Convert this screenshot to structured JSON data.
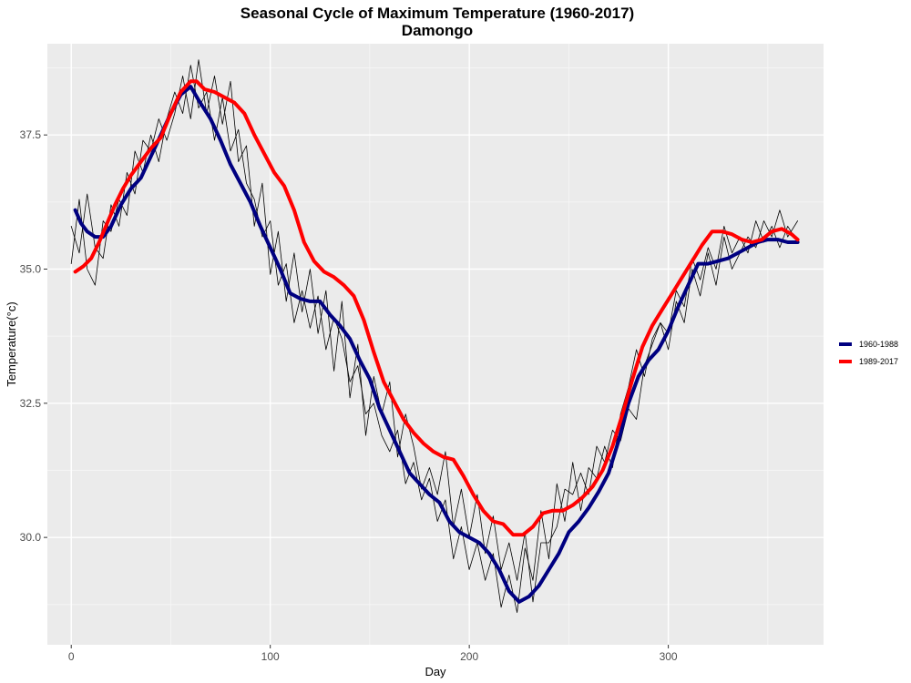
{
  "chart_data": {
    "type": "line",
    "title": "Seasonal Cycle of Maximum Temperature (1960-2017)",
    "subtitle": "Damongo",
    "xlabel": "Day",
    "ylabel": "Temperature(°c)",
    "xlim": [
      -12,
      378
    ],
    "ylim": [
      28.0,
      39.2
    ],
    "x_ticks": [
      0,
      100,
      200,
      300
    ],
    "x_tick_labels": [
      "0",
      "100",
      "200",
      "300"
    ],
    "y_ticks": [
      30.0,
      32.5,
      35.0,
      37.5
    ],
    "y_tick_labels": [
      "30.0",
      "32.5",
      "35.0",
      "37.5"
    ],
    "grid": true,
    "legend_position": "right",
    "series": [
      {
        "name": "1960-1988",
        "color": "#000080",
        "smoothed": true,
        "x": [
          2,
          5,
          8,
          12,
          16,
          20,
          25,
          30,
          35,
          40,
          45,
          50,
          55,
          60,
          64,
          70,
          75,
          80,
          85,
          90,
          95,
          100,
          105,
          110,
          115,
          120,
          125,
          130,
          135,
          140,
          145,
          150,
          155,
          160,
          165,
          170,
          175,
          180,
          185,
          190,
          195,
          200,
          205,
          210,
          215,
          220,
          225,
          230,
          235,
          240,
          245,
          250,
          255,
          260,
          265,
          270,
          275,
          280,
          285,
          290,
          295,
          300,
          305,
          310,
          315,
          320,
          325,
          330,
          335,
          340,
          345,
          350,
          355,
          360,
          365
        ],
        "y": [
          36.1,
          35.85,
          35.7,
          35.6,
          35.6,
          35.8,
          36.2,
          36.5,
          36.7,
          37.1,
          37.5,
          37.9,
          38.25,
          38.4,
          38.15,
          37.8,
          37.4,
          36.95,
          36.6,
          36.25,
          35.8,
          35.4,
          35.0,
          34.55,
          34.45,
          34.4,
          34.4,
          34.15,
          33.95,
          33.7,
          33.3,
          32.95,
          32.4,
          32.0,
          31.6,
          31.2,
          31.0,
          30.8,
          30.65,
          30.3,
          30.1,
          30.0,
          29.9,
          29.7,
          29.4,
          29.0,
          28.8,
          28.9,
          29.1,
          29.4,
          29.7,
          30.1,
          30.3,
          30.55,
          30.85,
          31.2,
          31.8,
          32.5,
          33.0,
          33.3,
          33.5,
          33.85,
          34.3,
          34.7,
          35.1,
          35.1,
          35.15,
          35.2,
          35.3,
          35.4,
          35.5,
          35.55,
          35.55,
          35.5,
          35.5
        ]
      },
      {
        "name": "1989-2017",
        "color": "#ff0000",
        "smoothed": true,
        "x": [
          2,
          6,
          10,
          14,
          18,
          22,
          26,
          30,
          35,
          40,
          45,
          50,
          55,
          60,
          63,
          67,
          72,
          77,
          82,
          87,
          92,
          97,
          102,
          107,
          112,
          117,
          122,
          127,
          132,
          137,
          142,
          147,
          152,
          157,
          162,
          167,
          172,
          177,
          182,
          187,
          192,
          197,
          202,
          207,
          212,
          217,
          222,
          227,
          232,
          237,
          242,
          247,
          252,
          257,
          262,
          267,
          272,
          277,
          282,
          287,
          292,
          297,
          302,
          307,
          312,
          317,
          322,
          327,
          332,
          337,
          342,
          347,
          352,
          357,
          362,
          365
        ],
        "y": [
          34.95,
          35.05,
          35.2,
          35.5,
          35.85,
          36.2,
          36.5,
          36.75,
          37.0,
          37.25,
          37.45,
          37.9,
          38.3,
          38.5,
          38.5,
          38.35,
          38.3,
          38.2,
          38.1,
          37.9,
          37.5,
          37.15,
          36.8,
          36.55,
          36.1,
          35.5,
          35.15,
          34.95,
          34.85,
          34.7,
          34.5,
          34.05,
          33.45,
          32.9,
          32.55,
          32.2,
          31.95,
          31.75,
          31.6,
          31.5,
          31.45,
          31.15,
          30.8,
          30.5,
          30.3,
          30.25,
          30.05,
          30.05,
          30.2,
          30.45,
          30.5,
          30.5,
          30.6,
          30.75,
          30.95,
          31.25,
          31.7,
          32.3,
          32.95,
          33.55,
          33.95,
          34.25,
          34.55,
          34.85,
          35.15,
          35.45,
          35.7,
          35.7,
          35.65,
          35.55,
          35.5,
          35.55,
          35.7,
          35.75,
          35.65,
          35.55
        ]
      },
      {
        "name": "",
        "color": "#000000",
        "smoothed": false,
        "x": [
          0,
          4,
          8,
          12,
          16,
          20,
          24,
          28,
          32,
          36,
          40,
          44,
          48,
          52,
          56,
          60,
          64,
          68,
          72,
          76,
          80,
          84,
          88,
          92,
          96,
          100,
          104,
          108,
          112,
          116,
          120,
          124,
          128,
          132,
          136,
          140,
          144,
          148,
          152,
          156,
          160,
          164,
          168,
          172,
          176,
          180,
          184,
          188,
          192,
          196,
          200,
          204,
          208,
          212,
          216,
          220,
          224,
          228,
          232,
          236,
          240,
          244,
          248,
          252,
          256,
          260,
          264,
          268,
          272,
          276,
          280,
          284,
          288,
          292,
          296,
          300,
          304,
          308,
          312,
          316,
          320,
          324,
          328,
          332,
          336,
          340,
          344,
          348,
          352,
          356,
          360,
          365
        ],
        "y": [
          35.1,
          36.3,
          35.0,
          34.7,
          35.9,
          35.7,
          36.3,
          36.0,
          37.2,
          36.8,
          37.5,
          37.0,
          37.8,
          38.3,
          37.9,
          38.8,
          38.0,
          38.3,
          37.4,
          38.2,
          37.2,
          37.6,
          36.6,
          36.3,
          35.6,
          35.9,
          34.7,
          35.1,
          34.0,
          34.6,
          33.9,
          34.5,
          33.5,
          34.1,
          33.7,
          32.9,
          33.2,
          32.3,
          32.5,
          31.9,
          31.6,
          32.0,
          31.0,
          31.4,
          30.7,
          31.1,
          30.3,
          30.7,
          29.6,
          30.2,
          29.4,
          29.9,
          29.2,
          29.7,
          28.7,
          29.3,
          28.6,
          29.8,
          29.2,
          30.5,
          29.6,
          31.0,
          30.3,
          31.4,
          30.5,
          31.3,
          31.1,
          31.7,
          31.3,
          32.3,
          32.8,
          33.5,
          33.0,
          33.7,
          34.0,
          33.8,
          34.6,
          34.3,
          35.2,
          34.8,
          35.4,
          35.0,
          35.8,
          35.3,
          35.6,
          35.3,
          35.9,
          35.5,
          35.8,
          35.4,
          35.8,
          35.5
        ]
      },
      {
        "name": "",
        "color": "#000000",
        "smoothed": false,
        "x": [
          0,
          4,
          8,
          12,
          16,
          20,
          24,
          28,
          32,
          36,
          40,
          44,
          48,
          52,
          56,
          60,
          64,
          68,
          72,
          76,
          80,
          84,
          88,
          92,
          96,
          100,
          104,
          108,
          112,
          116,
          120,
          124,
          128,
          132,
          136,
          140,
          144,
          148,
          152,
          156,
          160,
          164,
          168,
          172,
          176,
          180,
          184,
          188,
          192,
          196,
          200,
          204,
          208,
          212,
          216,
          220,
          224,
          228,
          232,
          236,
          240,
          244,
          248,
          252,
          256,
          260,
          264,
          268,
          272,
          276,
          280,
          284,
          288,
          292,
          296,
          300,
          304,
          308,
          312,
          316,
          320,
          324,
          328,
          332,
          336,
          340,
          344,
          348,
          352,
          356,
          360,
          365
        ],
        "y": [
          35.8,
          35.3,
          36.4,
          35.4,
          35.2,
          36.2,
          35.8,
          36.8,
          36.4,
          37.4,
          37.2,
          37.8,
          37.4,
          37.9,
          38.6,
          37.8,
          38.9,
          37.9,
          38.6,
          37.7,
          38.5,
          37.0,
          37.3,
          35.8,
          36.6,
          34.9,
          35.7,
          34.4,
          35.3,
          34.2,
          35.0,
          33.8,
          34.6,
          33.1,
          34.4,
          32.6,
          33.6,
          31.9,
          33.0,
          32.3,
          32.9,
          31.5,
          32.3,
          31.7,
          30.9,
          31.3,
          30.8,
          31.6,
          30.2,
          30.9,
          30.0,
          30.8,
          29.7,
          30.4,
          29.4,
          29.9,
          29.2,
          30.1,
          28.8,
          29.9,
          29.9,
          30.2,
          30.9,
          30.8,
          31.2,
          30.8,
          31.7,
          31.4,
          32.0,
          31.8,
          32.4,
          32.2,
          33.2,
          33.6,
          34.0,
          33.5,
          34.4,
          34.0,
          35.0,
          34.5,
          35.3,
          34.7,
          35.6,
          35.0,
          35.3,
          35.6,
          35.4,
          35.9,
          35.6,
          36.1,
          35.6,
          35.9
        ]
      }
    ]
  }
}
